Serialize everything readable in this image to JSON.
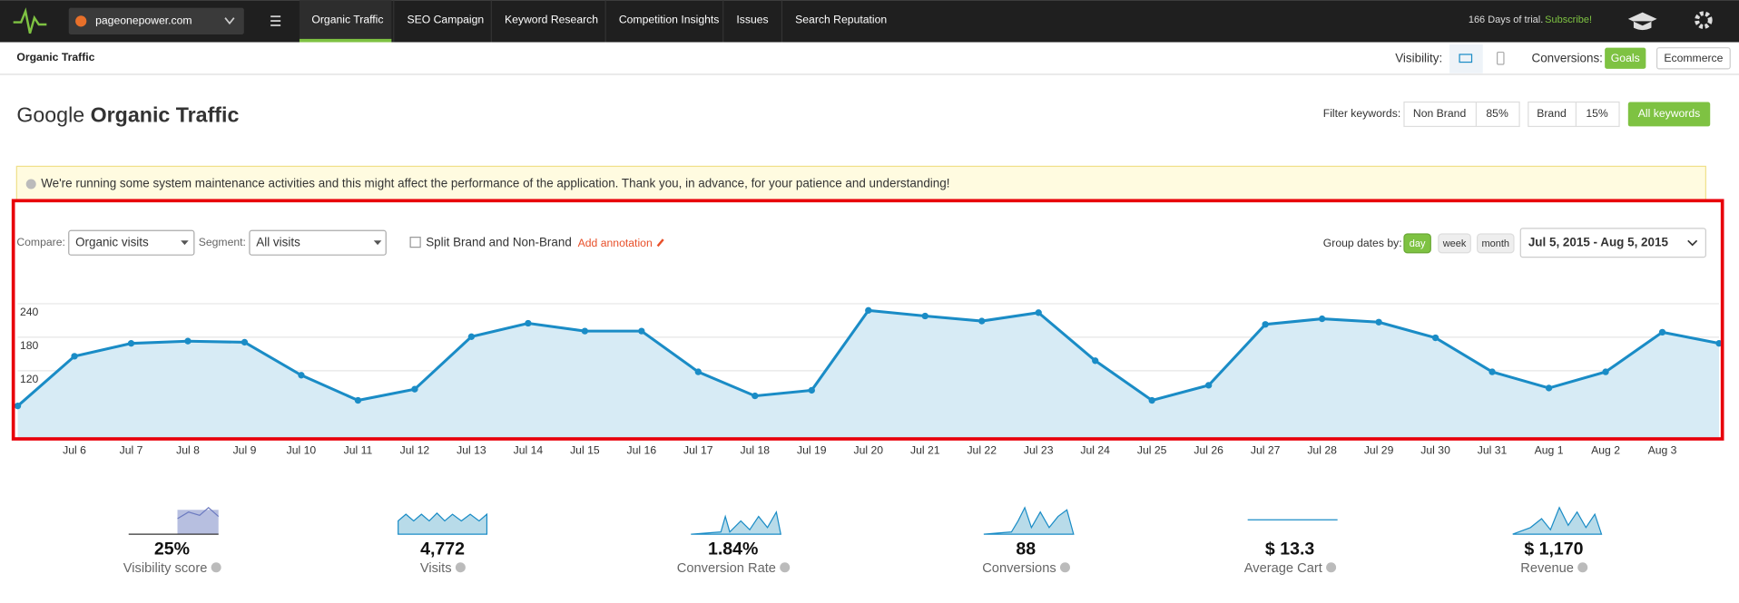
{
  "nav": {
    "brand": "pageonepower.com",
    "tabs": [
      "Organic Traffic",
      "SEO Campaign",
      "Keyword Research",
      "Competition Insights",
      "Issues",
      "Search Reputation"
    ],
    "trial": "166 Days of trial.",
    "subscribe": "Subscribe!"
  },
  "subheader": {
    "title": "Organic Traffic",
    "visibility": "Visibility:",
    "conversions": "Conversions:",
    "goals": "Goals",
    "ecommerce": "Ecommerce"
  },
  "heading": {
    "prefix": "Google",
    "bold": "Organic Traffic"
  },
  "filter": {
    "label": "Filter keywords:",
    "non_brand": "Non Brand",
    "non_brand_pct": "85%",
    "brand": "Brand",
    "brand_pct": "15%",
    "all": "All keywords"
  },
  "notice": "We're running some system maintenance activities and this might affect the performance of the application. Thank you, in advance, for your patience and understanding!",
  "controls": {
    "compare_label": "Compare:",
    "compare": "Organic visits",
    "segment_label": "Segment:",
    "segment": "All visits",
    "split": "Split Brand and Non-Brand",
    "annotation": "Add annotation",
    "group_label": "Group dates by:",
    "groups": [
      "day",
      "week",
      "month"
    ],
    "date_range": "Jul 5, 2015 - Aug 5, 2015"
  },
  "chart_data": {
    "type": "area",
    "color": "#1a8cc6",
    "fill": "#d7ebf5",
    "categories": [
      null,
      "Jul 6",
      "Jul 7",
      "Jul 8",
      "Jul 9",
      "Jul 10",
      "Jul 11",
      "Jul 12",
      "Jul 13",
      "Jul 14",
      "Jul 15",
      "Jul 16",
      "Jul 17",
      "Jul 18",
      "Jul 19",
      "Jul 20",
      "Jul 21",
      "Jul 22",
      "Jul 23",
      "Jul 24",
      "Jul 25",
      "Jul 26",
      "Jul 27",
      "Jul 28",
      "Jul 29",
      "Jul 30",
      "Jul 31",
      "Aug 1",
      "Aug 2",
      "Aug 3",
      null
    ],
    "values": [
      57,
      146,
      169,
      173,
      171,
      112,
      67,
      87,
      181,
      205,
      191,
      191,
      118,
      75,
      85,
      228,
      218,
      209,
      224,
      138,
      67,
      94,
      203,
      213,
      207,
      179,
      118,
      89,
      118,
      189,
      169
    ],
    "ylim": [
      0,
      240
    ],
    "yticks": [
      60,
      120,
      180,
      240
    ],
    "grid": true
  },
  "metrics": [
    {
      "value": "25%",
      "label": "Visibility score"
    },
    {
      "value": "4,772",
      "label": "Visits"
    },
    {
      "value": "1.84%",
      "label": "Conversion Rate"
    },
    {
      "value": "88",
      "label": "Conversions"
    },
    {
      "value": "$ 13.3",
      "label": "Average Cart"
    },
    {
      "value": "$ 1,170",
      "label": "Revenue"
    }
  ]
}
